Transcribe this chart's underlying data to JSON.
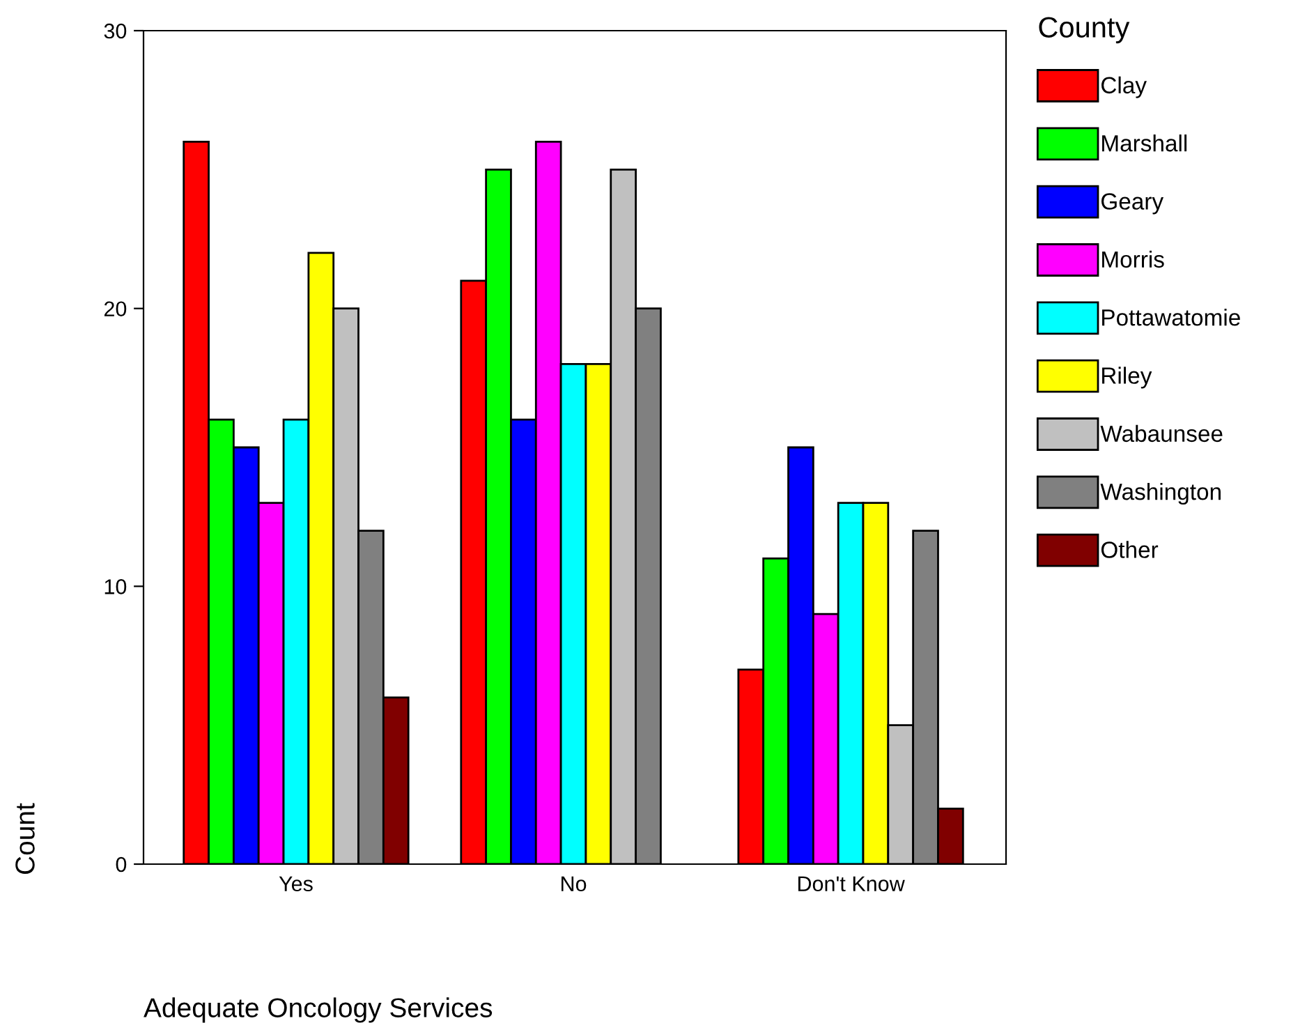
{
  "chart_data": {
    "type": "bar",
    "xlabel": "Adequate Oncology Services",
    "ylabel": "Count",
    "legend_title": "County",
    "categories": [
      "Yes",
      "No",
      "Don't Know"
    ],
    "series": [
      {
        "name": "Clay",
        "color": "#ff0000",
        "values": [
          26,
          21,
          7
        ]
      },
      {
        "name": "Marshall",
        "color": "#00ff00",
        "values": [
          16,
          25,
          11
        ]
      },
      {
        "name": "Geary",
        "color": "#0000ff",
        "values": [
          15,
          16,
          15
        ]
      },
      {
        "name": "Morris",
        "color": "#ff00ff",
        "values": [
          13,
          26,
          9
        ]
      },
      {
        "name": "Pottawatomie",
        "color": "#00ffff",
        "values": [
          16,
          18,
          13
        ]
      },
      {
        "name": "Riley",
        "color": "#ffff00",
        "values": [
          22,
          18,
          13
        ]
      },
      {
        "name": "Wabaunsee",
        "color": "#c0c0c0",
        "values": [
          20,
          25,
          5
        ]
      },
      {
        "name": "Washington",
        "color": "#808080",
        "values": [
          12,
          20,
          12
        ]
      },
      {
        "name": "Other",
        "color": "#800000",
        "values": [
          6,
          null,
          2
        ]
      }
    ],
    "ylim": [
      0,
      30
    ],
    "yticks": [
      0,
      10,
      20,
      30
    ],
    "grid": false,
    "legend": "right"
  }
}
